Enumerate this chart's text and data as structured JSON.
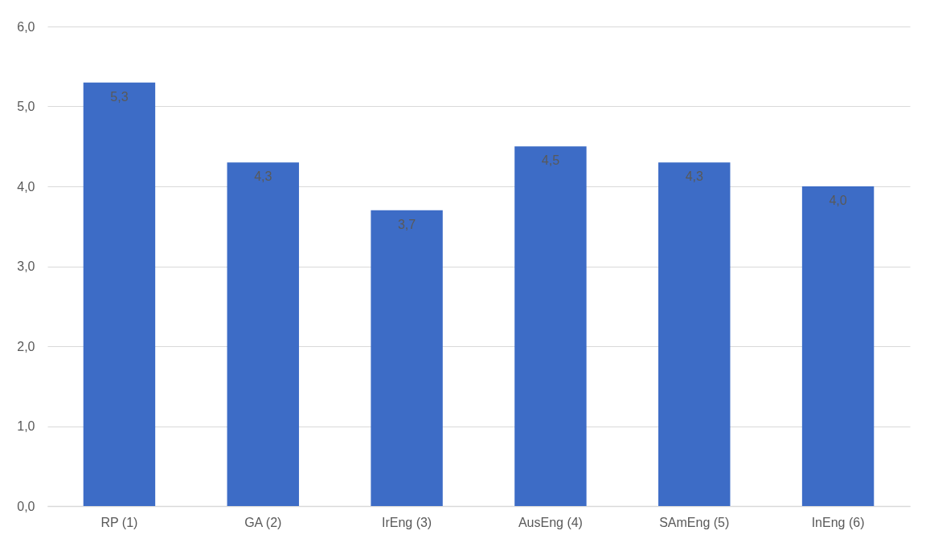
{
  "chart_data": {
    "type": "bar",
    "categories": [
      "RP (1)",
      "GA (2)",
      "IrEng (3)",
      "AusEng (4)",
      "SAmEng (5)",
      "InEng (6)"
    ],
    "values": [
      5.3,
      4.3,
      3.7,
      4.5,
      4.3,
      4.0
    ],
    "value_labels": [
      "5,3",
      "4,3",
      "3,7",
      "4,5",
      "4,3",
      "4,0"
    ],
    "color": "#3d6cc6",
    "ylim": [
      0,
      6
    ],
    "yticks": [
      {
        "value": 0,
        "label": "0,0"
      },
      {
        "value": 1,
        "label": "1,0"
      },
      {
        "value": 2,
        "label": "2,0"
      },
      {
        "value": 3,
        "label": "3,0"
      },
      {
        "value": 4,
        "label": "4,0"
      },
      {
        "value": 5,
        "label": "5,0"
      },
      {
        "value": 6,
        "label": "6,0"
      }
    ],
    "grid": "y"
  }
}
